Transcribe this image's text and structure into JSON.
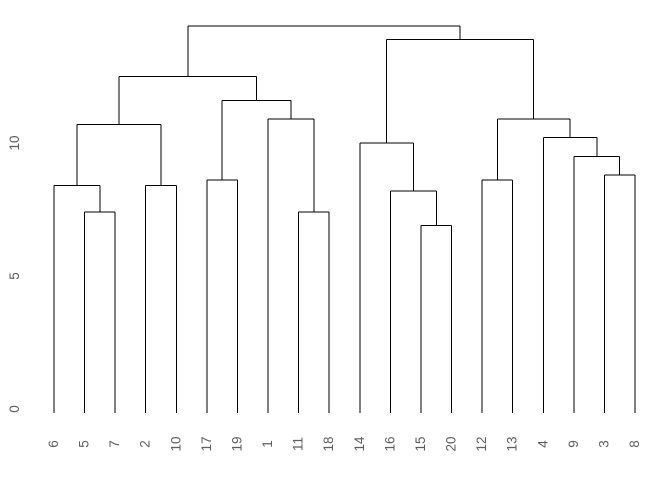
{
  "window": {
    "background": "#ffffff"
  },
  "chart_data": {
    "type": "dendrogram",
    "title": "",
    "orientation": "vertical",
    "leaf_labels": [
      "6",
      "5",
      "7",
      "2",
      "10",
      "17",
      "19",
      "1",
      "11",
      "18",
      "14",
      "16",
      "15",
      "20",
      "12",
      "13",
      "4",
      "9",
      "3",
      "8"
    ],
    "y_axis": {
      "ticks": [
        0,
        5,
        10
      ],
      "range": [
        0,
        14.4
      ],
      "grid": false,
      "axis_line": false
    },
    "legend": "none",
    "colors": {
      "line": "#000000",
      "text": "#5e5e5e"
    },
    "tree": {
      "h": 14.4,
      "children": [
        {
          "h": 12.5,
          "children": [
            {
              "h": 10.7,
              "children": [
                {
                  "h": 8.4,
                  "children": [
                    {
                      "leaf": "6"
                    },
                    {
                      "h": 7.4,
                      "children": [
                        {
                          "leaf": "5"
                        },
                        {
                          "leaf": "7"
                        }
                      ]
                    }
                  ]
                },
                {
                  "h": 8.4,
                  "children": [
                    {
                      "leaf": "2"
                    },
                    {
                      "leaf": "10"
                    }
                  ]
                }
              ]
            },
            {
              "h": 11.6,
              "children": [
                {
                  "h": 8.6,
                  "children": [
                    {
                      "leaf": "17"
                    },
                    {
                      "leaf": "19"
                    }
                  ]
                },
                {
                  "h": 10.9,
                  "children": [
                    {
                      "leaf": "1"
                    },
                    {
                      "h": 7.4,
                      "children": [
                        {
                          "leaf": "11"
                        },
                        {
                          "leaf": "18"
                        }
                      ]
                    }
                  ]
                }
              ]
            }
          ]
        },
        {
          "h": 13.9,
          "children": [
            {
              "h": 10.0,
              "children": [
                {
                  "leaf": "14"
                },
                {
                  "h": 8.2,
                  "children": [
                    {
                      "leaf": "16"
                    },
                    {
                      "h": 6.9,
                      "children": [
                        {
                          "leaf": "15"
                        },
                        {
                          "leaf": "20"
                        }
                      ]
                    }
                  ]
                }
              ]
            },
            {
              "h": 10.9,
              "children": [
                {
                  "h": 8.6,
                  "children": [
                    {
                      "leaf": "12"
                    },
                    {
                      "leaf": "13"
                    }
                  ]
                },
                {
                  "h": 10.2,
                  "children": [
                    {
                      "leaf": "4"
                    },
                    {
                      "h": 9.5,
                      "children": [
                        {
                          "leaf": "9"
                        },
                        {
                          "h": 8.8,
                          "children": [
                            {
                              "leaf": "3"
                            },
                            {
                              "leaf": "8"
                            }
                          ]
                        }
                      ]
                    }
                  ]
                }
              ]
            }
          ]
        }
      ]
    }
  }
}
